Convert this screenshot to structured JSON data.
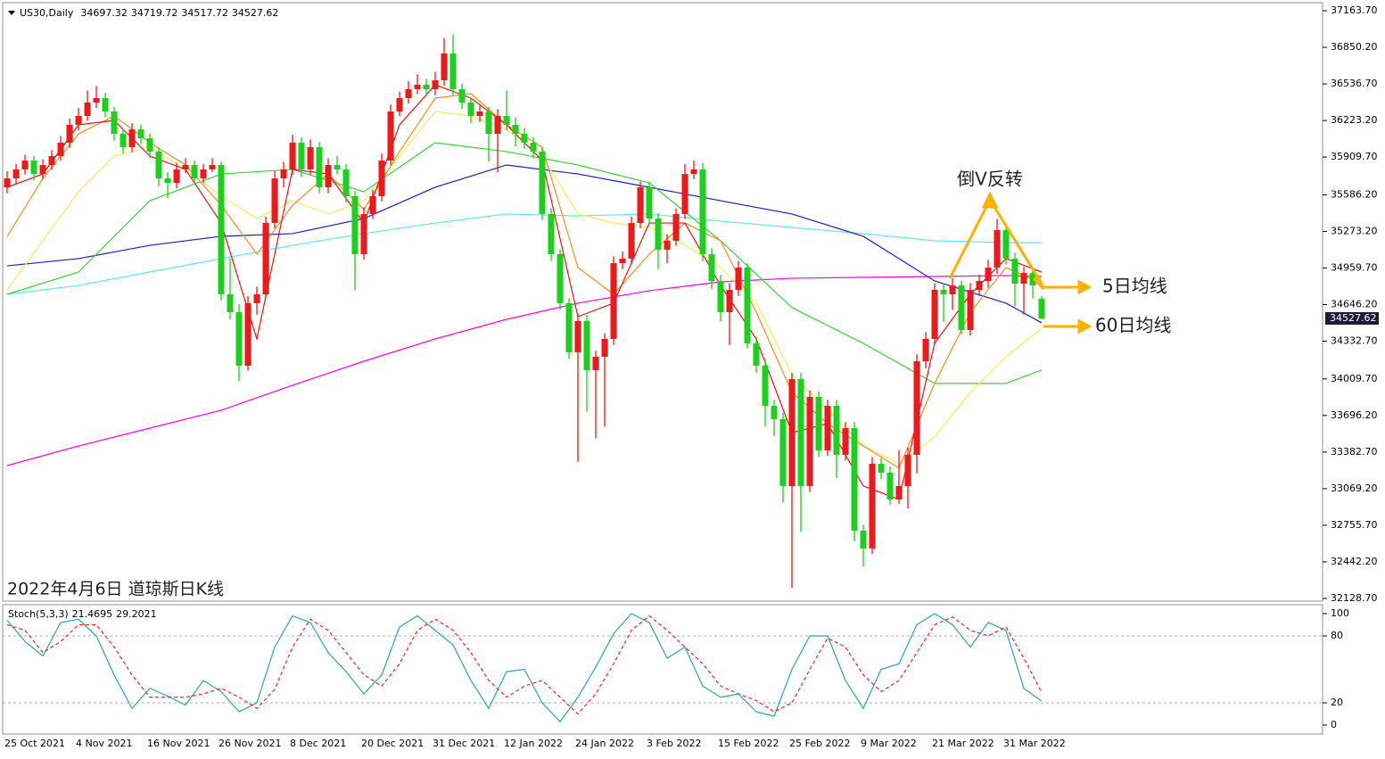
{
  "chart_data": [
    {
      "type": "candlestick",
      "title": "US30,Daily",
      "caption": "2022年4月6日 道琼斯日K线",
      "annotations": [
        "倒V反转",
        "5日均线",
        "60日均线"
      ],
      "categories": [
        "25 Oct 2021",
        null,
        null,
        null,
        null,
        null,
        null,
        null,
        "4 Nov 2021",
        null,
        null,
        null,
        null,
        null,
        null,
        null,
        "16 Nov 2021",
        null,
        null,
        null,
        null,
        null,
        null,
        null,
        "26 Nov 2021",
        null,
        null,
        null,
        null,
        null,
        null,
        null,
        "8 Dec 2021",
        null,
        null,
        null,
        null,
        null,
        null,
        null,
        "20 Dec 2021",
        null,
        null,
        null,
        null,
        null,
        null,
        null,
        "31 Dec 2021",
        null,
        null,
        null,
        null,
        null,
        null,
        null,
        "12 Jan 2022",
        null,
        null,
        null,
        null,
        null,
        null,
        null,
        "24 Jan 2022",
        null,
        null,
        null,
        null,
        null,
        null,
        null,
        "3 Feb 2022",
        null,
        null,
        null,
        null,
        null,
        null,
        null,
        "15 Feb 2022",
        null,
        null,
        null,
        null,
        null,
        null,
        null,
        "25 Feb 2022",
        null,
        null,
        null,
        null,
        null,
        null,
        null,
        "9 Mar 2022",
        null,
        null,
        null,
        null,
        null,
        null,
        null,
        "21 Mar 2022",
        null,
        null,
        null,
        null,
        null,
        null,
        null,
        "31 Mar 2022",
        null,
        null,
        null,
        null
      ],
      "open": [
        35650,
        35727,
        35804,
        35880,
        35765,
        35842,
        35918,
        36033,
        36186,
        36262,
        36377,
        36415,
        36300,
        36109,
        35995,
        36147,
        36071,
        35957,
        35727,
        35689,
        35804,
        35842,
        35727,
        35804,
        35842,
        34734,
        34581,
        34123,
        34658,
        34734,
        35345,
        35727,
        35804,
        36033,
        35804,
        35995,
        35651,
        35842,
        35804,
        35575,
        35078,
        35422,
        35575,
        35880,
        36300,
        36415,
        36491,
        36530,
        36491,
        36568,
        36797,
        36491,
        36377,
        36262,
        36300,
        36109,
        36262,
        36186,
        36109,
        36033,
        35957,
        35422,
        35078,
        34658,
        34238,
        34505,
        34085,
        34199,
        34352,
        35001,
        35040,
        35345,
        35651,
        35384,
        35116,
        35193,
        35422,
        35765,
        35804,
        35078,
        34848,
        34581,
        34772,
        34963,
        34314,
        34123,
        33779,
        33665,
        33092,
        34008,
        33092,
        33856,
        33397,
        33779,
        33359,
        33588,
        32710,
        32557,
        33283,
        33206,
        32977,
        33092,
        33359,
        34161,
        34352,
        34772,
        34734,
        34810,
        34428,
        34772,
        34848,
        34963,
        35284,
        35040,
        34825,
        34917,
        34697.32
      ],
      "high": [
        35790,
        35850,
        35930,
        35920,
        35890,
        35970,
        36090,
        36240,
        36330,
        36480,
        36520,
        36460,
        36340,
        36150,
        36200,
        36190,
        36110,
        35990,
        35780,
        35860,
        35900,
        35880,
        35850,
        35900,
        35870,
        35040,
        34650,
        34720,
        34800,
        35400,
        35790,
        35870,
        36100,
        36080,
        36060,
        36040,
        35900,
        35920,
        35850,
        35620,
        35480,
        35630,
        35940,
        36360,
        36470,
        36560,
        36620,
        36580,
        36640,
        36930,
        36960,
        36540,
        36420,
        36350,
        36340,
        36320,
        36480,
        36250,
        36160,
        36080,
        36000,
        35470,
        35120,
        34700,
        34570,
        34560,
        34250,
        34400,
        35060,
        35100,
        35400,
        35700,
        35700,
        35430,
        35250,
        35470,
        35850,
        35880,
        35860,
        35130,
        34900,
        34830,
        35020,
        35000,
        34370,
        34180,
        33830,
        33720,
        34060,
        34060,
        33910,
        33900,
        33830,
        33830,
        33640,
        33640,
        32760,
        33340,
        33330,
        33260,
        33400,
        33420,
        34220,
        34410,
        34830,
        34830,
        34870,
        34850,
        34830,
        34900,
        35030,
        35380,
        35330,
        35090,
        34970,
        34960,
        34719.72
      ],
      "low": [
        35600,
        35680,
        35760,
        35710,
        35720,
        35800,
        35880,
        35990,
        36140,
        36220,
        36330,
        36250,
        36050,
        35940,
        35950,
        36020,
        35900,
        35660,
        35560,
        35640,
        35770,
        35680,
        35690,
        35780,
        34680,
        34520,
        33990,
        34080,
        34560,
        34700,
        35300,
        35650,
        35760,
        35740,
        35760,
        35600,
        35600,
        35760,
        35520,
        34770,
        35030,
        35380,
        35530,
        35840,
        36260,
        36370,
        36450,
        36430,
        36440,
        36520,
        36440,
        36320,
        36200,
        36210,
        35870,
        35780,
        36140,
        36000,
        35980,
        35900,
        35370,
        35020,
        34600,
        34180,
        33300,
        33730,
        33500,
        33600,
        34300,
        34950,
        34990,
        35300,
        35330,
        34950,
        35000,
        35150,
        35380,
        35720,
        35020,
        34780,
        34500,
        34300,
        34720,
        34270,
        34060,
        33600,
        33520,
        32950,
        32220,
        32700,
        33040,
        33340,
        33350,
        33160,
        33310,
        32620,
        32400,
        32510,
        33150,
        32930,
        32940,
        32900,
        33200,
        34100,
        34300,
        34500,
        34600,
        34390,
        34380,
        34720,
        34790,
        34910,
        34990,
        34630,
        34560,
        34700,
        34517.72
      ],
      "close": [
        35727,
        35804,
        35880,
        35765,
        35842,
        35918,
        36033,
        36186,
        36262,
        36377,
        36415,
        36300,
        36109,
        35995,
        36147,
        36071,
        35957,
        35727,
        35689,
        35804,
        35842,
        35727,
        35804,
        35842,
        34734,
        34581,
        34123,
        34658,
        34734,
        35345,
        35727,
        35804,
        36033,
        35804,
        35995,
        35651,
        35842,
        35804,
        35575,
        35078,
        35422,
        35575,
        35880,
        36300,
        36415,
        36491,
        36530,
        36491,
        36568,
        36797,
        36491,
        36377,
        36262,
        36300,
        36109,
        36262,
        36186,
        36109,
        36033,
        35957,
        35422,
        35078,
        34658,
        34238,
        34505,
        34085,
        34199,
        34352,
        35001,
        35040,
        35345,
        35651,
        35384,
        35116,
        35193,
        35422,
        35765,
        35804,
        35078,
        34848,
        34581,
        34772,
        34963,
        34314,
        34123,
        33779,
        33665,
        33092,
        34008,
        33092,
        33856,
        33397,
        33779,
        33359,
        33588,
        32710,
        32557,
        33283,
        33206,
        32977,
        33092,
        33359,
        34161,
        34352,
        34772,
        34734,
        34810,
        34428,
        34772,
        34848,
        34963,
        35284,
        35040,
        34825,
        34917,
        34810,
        34527.62
      ],
      "up_color": "#f01818",
      "down_color": "#19d219",
      "lines": [
        {
          "color": "#ff00ff",
          "x": [
            0,
            8,
            16,
            24,
            32,
            40,
            48,
            56,
            64,
            72,
            80,
            88,
            96,
            104,
            112,
            116
          ],
          "values": [
            33267,
            33435,
            33588,
            33741,
            33955,
            34161,
            34352,
            34520,
            34658,
            34765,
            34841,
            34872,
            34879,
            34887,
            34895,
            34887
          ]
        },
        {
          "color": "#5ee8e8",
          "x": [
            0,
            8,
            16,
            24,
            32,
            40,
            48,
            56,
            64,
            72,
            80,
            88,
            96,
            104,
            112,
            116
          ],
          "values": [
            34734,
            34810,
            34925,
            35040,
            35154,
            35254,
            35345,
            35422,
            35406,
            35422,
            35361,
            35307,
            35254,
            35193,
            35177,
            35177
          ]
        },
        {
          "color": "#1c1cc8",
          "x": [
            0,
            8,
            16,
            24,
            32,
            40,
            48,
            56,
            64,
            72,
            80,
            88,
            96,
            104,
            112,
            116
          ],
          "values": [
            34978,
            35040,
            35154,
            35231,
            35254,
            35383,
            35651,
            35842,
            35765,
            35651,
            35536,
            35422,
            35231,
            34849,
            34658,
            34490
          ]
        },
        {
          "color": "#3ccf3c",
          "x": [
            0,
            8,
            16,
            24,
            32,
            40,
            48,
            56,
            64,
            72,
            80,
            88,
            96,
            104,
            112,
            116
          ],
          "values": [
            34734,
            34925,
            35536,
            35765,
            35804,
            35613,
            36033,
            35957,
            35842,
            35689,
            35193,
            34620,
            34314,
            33971,
            33971,
            34085
          ]
        },
        {
          "color": "#f2ee5a",
          "x": [
            0,
            4,
            8,
            12,
            16,
            20,
            24,
            28,
            32,
            36,
            40,
            44,
            48,
            52,
            56,
            60,
            64,
            68,
            72,
            76,
            80,
            84,
            88,
            92,
            96,
            100,
            104,
            108,
            112,
            116
          ],
          "values": [
            34772,
            35193,
            35613,
            35918,
            35995,
            35804,
            35575,
            35383,
            35536,
            35422,
            35536,
            35918,
            36300,
            36262,
            36147,
            35918,
            35422,
            35345,
            35307,
            35154,
            34963,
            34658,
            34046,
            33741,
            33435,
            33283,
            33512,
            33894,
            34199,
            34444
          ]
        },
        {
          "color": "#ff8c1a",
          "x": [
            0,
            4,
            8,
            12,
            16,
            20,
            24,
            28,
            32,
            36,
            40,
            44,
            48,
            52,
            56,
            60,
            64,
            68,
            72,
            76,
            80,
            84,
            88,
            92,
            96,
            100,
            104,
            108,
            112,
            116
          ],
          "values": [
            35231,
            35727,
            36109,
            36262,
            36033,
            35842,
            35498,
            35078,
            35498,
            35765,
            35460,
            35957,
            36415,
            36453,
            36186,
            35995,
            34963,
            34734,
            35078,
            35345,
            35193,
            34581,
            33894,
            33626,
            33435,
            33245,
            33971,
            34581,
            34963,
            34825
          ]
        },
        {
          "color": "#f01010",
          "x": [
            0,
            4,
            8,
            12,
            16,
            20,
            24,
            28,
            32,
            36,
            40,
            44,
            48,
            52,
            56,
            60,
            64,
            68,
            72,
            76,
            80,
            84,
            88,
            92,
            96,
            100,
            104,
            108,
            112,
            116
          ],
          "values": [
            35651,
            35765,
            36186,
            36224,
            35918,
            35804,
            35345,
            34352,
            35804,
            35765,
            35345,
            36186,
            36529,
            36415,
            36186,
            35880,
            34543,
            34658,
            35345,
            35345,
            34810,
            34352,
            33549,
            33626,
            33092,
            32977,
            34314,
            34734,
            35040,
            34925
          ]
        }
      ],
      "ylim": [
        32128.7,
        37163.7
      ],
      "yticks": [
        {
          "value": 37163.7,
          "label": "37163.70"
        },
        {
          "value": 36850.2,
          "label": "36850.20"
        },
        {
          "value": 36536.7,
          "label": "36536.70"
        },
        {
          "value": 36223.2,
          "label": "36223.20"
        },
        {
          "value": 35909.7,
          "label": "35909.70"
        },
        {
          "value": 35586.2,
          "label": "35586.20"
        },
        {
          "value": 35273.2,
          "label": "35273.20"
        },
        {
          "value": 34959.7,
          "label": "34959.70"
        },
        {
          "value": 34646.2,
          "label": "34646.20"
        },
        {
          "value": 34332.7,
          "label": "34332.70"
        },
        {
          "value": 34009.7,
          "label": "34009.70"
        },
        {
          "value": 33696.2,
          "label": "33696.20"
        },
        {
          "value": 33382.7,
          "label": "33382.70"
        },
        {
          "value": 33069.2,
          "label": "33069.20"
        },
        {
          "value": 32755.7,
          "label": "32755.70"
        },
        {
          "value": 32442.2,
          "label": "32442.20"
        },
        {
          "value": 32128.7,
          "label": "32128.70"
        }
      ]
    },
    {
      "type": "line",
      "title": "Stoch(5,3,3)",
      "x": [
        0,
        2,
        4,
        6,
        8,
        10,
        12,
        14,
        16,
        18,
        20,
        22,
        24,
        26,
        28,
        30,
        32,
        34,
        36,
        38,
        40,
        42,
        44,
        46,
        48,
        50,
        52,
        54,
        56,
        58,
        60,
        62,
        64,
        66,
        68,
        70,
        72,
        74,
        76,
        78,
        80,
        82,
        84,
        86,
        88,
        90,
        92,
        94,
        96,
        98,
        100,
        102,
        104,
        106,
        108,
        110,
        112,
        114,
        116
      ],
      "series": [
        {
          "color": "#2aa6a6",
          "values": [
            94,
            75,
            62,
            92,
            95,
            80,
            45,
            15,
            33,
            26,
            18,
            40,
            30,
            12,
            20,
            70,
            98,
            92,
            65,
            48,
            28,
            45,
            88,
            98,
            85,
            72,
            40,
            15,
            48,
            50,
            20,
            3,
            25,
            52,
            82,
            100,
            92,
            60,
            70,
            35,
            25,
            28,
            12,
            8,
            50,
            80,
            80,
            40,
            15,
            50,
            55,
            90,
            100,
            90,
            70,
            92,
            85,
            33,
            21.4695
          ]
        },
        {
          "color": "#ff2020",
          "dashed": true,
          "values": [
            90,
            85,
            65,
            75,
            90,
            90,
            70,
            45,
            25,
            25,
            25,
            28,
            33,
            25,
            15,
            32,
            70,
            95,
            85,
            65,
            45,
            35,
            55,
            85,
            95,
            85,
            65,
            40,
            25,
            35,
            40,
            25,
            10,
            28,
            55,
            85,
            98,
            85,
            70,
            55,
            35,
            28,
            22,
            12,
            20,
            50,
            78,
            70,
            45,
            30,
            40,
            65,
            90,
            97,
            85,
            80,
            88,
            60,
            29.2021
          ]
        }
      ],
      "ylim": [
        0,
        100
      ],
      "yticks": [
        0,
        20,
        80,
        100
      ]
    }
  ]
}
